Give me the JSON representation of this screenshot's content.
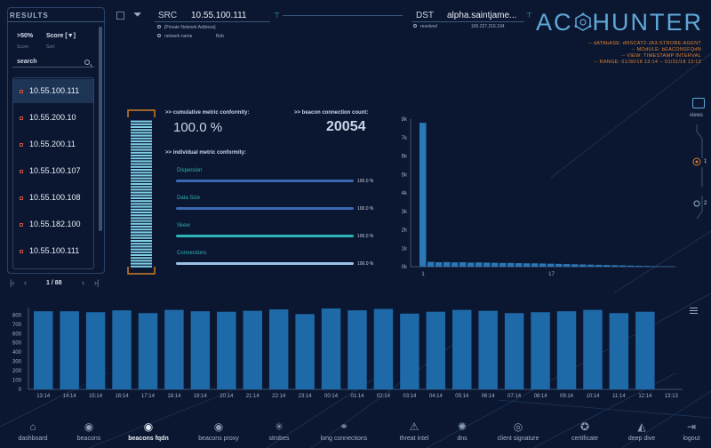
{
  "results": {
    "title": "RESULTS",
    "filter_value": ">50%",
    "filter_value_sub": "Score",
    "sort_value": "Score [▼]",
    "sort_value_sub": "Sort",
    "search_label": "search",
    "items": [
      {
        "ip": "10.55.100.111",
        "selected": true
      },
      {
        "ip": "10.55.200.10",
        "selected": false
      },
      {
        "ip": "10.55.200.11",
        "selected": false
      },
      {
        "ip": "10.55.100.107",
        "selected": false
      },
      {
        "ip": "10.55.100.108",
        "selected": false
      },
      {
        "ip": "10.55.182.100",
        "selected": false
      },
      {
        "ip": "10.55.100.111",
        "selected": false
      }
    ],
    "pager": "1 / 88"
  },
  "header": {
    "src_label": "SRC",
    "src_ip": "10.55.100.111",
    "src_desc": "[Private Network Address]",
    "network_name_label": "network name",
    "network_name_value": "Bob",
    "dst_label": "DST",
    "dst_host": "alpha.saintjame...",
    "resolved_label": "resolved",
    "resolved_value": "165.227.216.194"
  },
  "logo": {
    "text_left": "AC",
    "text_right": "HUNTER"
  },
  "dbinfo": {
    "line1": "-- dATAbASE: dNSCAT2-JA3-STROBE-AGENT",
    "line2": "-- MOdULE: bEACONSFQdN",
    "line3": "-- VIEW: TIMESTAMP INTERVAL",
    "line4": "-- RANGE: 01/30/18 13:14 -- 01/31/18 13:13"
  },
  "metrics": {
    "cumulative_label": ">> cumulative metric conformity:",
    "cumulative_value": "100.0 %",
    "count_label": ">> beacon connection count:",
    "count_value": "20054",
    "individual_label": ">> individual metric conformity:",
    "items": [
      {
        "name": "Dispersion",
        "pct": "100.0 %",
        "value": 1.0,
        "color": "#3b68b0"
      },
      {
        "name": "Data Size",
        "pct": "100.0 %",
        "value": 1.0,
        "color": "#3b68b0"
      },
      {
        "name": "Skew",
        "pct": "100.0 %",
        "value": 1.0,
        "color": "#2bb5b5"
      },
      {
        "name": "Connections",
        "pct": "100.0 %",
        "value": 1.0,
        "color": "#9bc2e6"
      }
    ],
    "gauge_level": 1.0
  },
  "views": {
    "label": "views",
    "options": [
      "1",
      "2"
    ],
    "selected": "1"
  },
  "histogram": {
    "type": "bar",
    "ylim": [
      0,
      8000
    ],
    "yticks": [
      "0k",
      "1k",
      "2k",
      "3k",
      "4k",
      "5k",
      "6k",
      "7k",
      "8k"
    ],
    "xticks": [
      "1",
      "17"
    ],
    "values": [
      7800,
      260,
      240,
      250,
      230,
      240,
      220,
      230,
      220,
      210,
      200,
      200,
      190,
      180,
      180,
      170,
      160,
      150,
      140,
      130,
      120,
      110,
      100,
      90,
      80,
      70,
      60,
      50,
      40,
      30,
      20,
      15
    ]
  },
  "chart_data": {
    "type": "bar",
    "categories": [
      "13:14",
      "14:14",
      "15:14",
      "16:14",
      "17:14",
      "18:14",
      "19:14",
      "20:14",
      "21:14",
      "22:14",
      "23:14",
      "00:14",
      "01:14",
      "02:14",
      "03:14",
      "04:14",
      "05:14",
      "06:14",
      "07:14",
      "08:14",
      "09:14",
      "10:14",
      "11:14",
      "12:14",
      "13:13"
    ],
    "values": [
      840,
      840,
      830,
      850,
      820,
      855,
      840,
      835,
      845,
      860,
      810,
      870,
      850,
      865,
      815,
      835,
      855,
      845,
      820,
      830,
      840,
      855,
      820,
      835,
      0
    ],
    "ylim": [
      0,
      880
    ],
    "yticks": [
      0,
      100,
      200,
      300,
      400,
      500,
      600,
      700,
      800
    ]
  },
  "nav": [
    {
      "label": "dashboard",
      "icon": "home-icon",
      "glyph": "⌂",
      "active": false
    },
    {
      "label": "beacons",
      "icon": "broadcast-icon",
      "glyph": "◉",
      "active": false
    },
    {
      "label": "beacons fqdn",
      "icon": "broadcast-fqdn-icon",
      "glyph": "◉",
      "active": true
    },
    {
      "label": "beacons proxy",
      "icon": "broadcast-proxy-icon",
      "glyph": "◉",
      "active": false
    },
    {
      "label": "strobes",
      "icon": "starburst-icon",
      "glyph": "✳",
      "active": false
    },
    {
      "label": "long connections",
      "icon": "nodes-icon",
      "glyph": "⚭",
      "active": false
    },
    {
      "label": "threat intel",
      "icon": "warning-icon",
      "glyph": "⚠",
      "active": false
    },
    {
      "label": "dns",
      "icon": "globe-icon",
      "glyph": "✺",
      "active": false
    },
    {
      "label": "client signature",
      "icon": "fingerprint-icon",
      "glyph": "◎",
      "active": false
    },
    {
      "label": "certificate",
      "icon": "ribbon-icon",
      "glyph": "✪",
      "active": false
    },
    {
      "label": "deep dive",
      "icon": "sail-icon",
      "glyph": "◭",
      "active": false
    },
    {
      "label": "logout",
      "icon": "logout-icon",
      "glyph": "⇥",
      "active": false
    }
  ]
}
